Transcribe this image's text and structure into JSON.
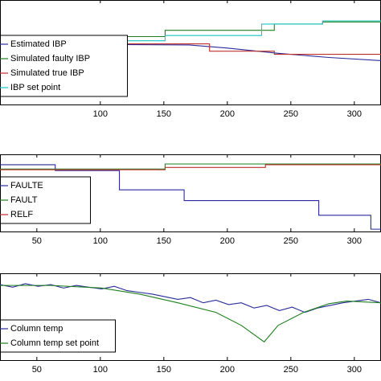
{
  "chart_data": [
    {
      "type": "line",
      "xlim": [
        21,
        321
      ],
      "xticks": [
        100,
        150,
        200,
        250,
        300
      ],
      "ylim": [
        0,
        1
      ],
      "legend": "lower left",
      "series": [
        {
          "name": "Estimated IBP",
          "color": "#2a2a9a",
          "x": [
            21,
            170,
            200,
            240,
            280,
            321
          ],
          "values": [
            0.58,
            0.57,
            0.54,
            0.49,
            0.45,
            0.42
          ]
        },
        {
          "name": "Simulated faulty IBP",
          "color": "#1e7f1e",
          "x": [
            21,
            66,
            66,
            104,
            104,
            151,
            151,
            237,
            237,
            275,
            275,
            321
          ],
          "values": [
            0.58,
            0.58,
            0.62,
            0.62,
            0.65,
            0.65,
            0.71,
            0.71,
            0.77,
            0.77,
            0.79,
            0.79
          ]
        },
        {
          "name": "Simulated true IBP",
          "color": "#c0302a",
          "x": [
            21,
            186,
            186,
            237,
            237,
            321
          ],
          "values": [
            0.58,
            0.58,
            0.51,
            0.51,
            0.48,
            0.48
          ]
        },
        {
          "name": "IBP set point",
          "color": "#19c4c4",
          "x": [
            21,
            104,
            104,
            151,
            151,
            227,
            227,
            275,
            275,
            321
          ],
          "values": [
            0.57,
            0.57,
            0.61,
            0.61,
            0.66,
            0.66,
            0.77,
            0.77,
            0.8,
            0.8
          ]
        }
      ]
    },
    {
      "type": "line",
      "xlim": [
        21,
        321
      ],
      "xticks": [
        50,
        100,
        150,
        200,
        250,
        300
      ],
      "ylim": [
        0,
        1
      ],
      "legend": "lower left",
      "series": [
        {
          "name": "FAULTE",
          "color": "#2a2a9a",
          "x": [
            21,
            64.5,
            64.5,
            115,
            115,
            166,
            166,
            272,
            272,
            313,
            313,
            321
          ],
          "values": [
            0.865,
            0.865,
            0.79,
            0.79,
            0.54,
            0.54,
            0.4,
            0.4,
            0.21,
            0.21,
            0.03,
            0.03
          ]
        },
        {
          "name": "FAULT",
          "color": "#1e7f1e",
          "x": [
            21,
            151,
            151,
            321
          ],
          "values": [
            0.81,
            0.81,
            0.875,
            0.875
          ]
        },
        {
          "name": "RELF",
          "color": "#c0302a",
          "x": [
            21,
            151,
            151,
            230,
            230,
            321
          ],
          "values": [
            0.8,
            0.8,
            0.83,
            0.83,
            0.865,
            0.865
          ]
        }
      ]
    },
    {
      "type": "line",
      "xlim": [
        21,
        321
      ],
      "xticks": [
        50,
        100,
        150,
        200,
        250,
        300
      ],
      "ylim": [
        0,
        1
      ],
      "legend": "lower left",
      "series": [
        {
          "name": "Column temp",
          "color": "#2a2a9a",
          "x": [
            21,
            31,
            41,
            51,
            61,
            71,
            81,
            91,
            101,
            111,
            121,
            131,
            141,
            151,
            161,
            171,
            181,
            191,
            201,
            211,
            221,
            231,
            241,
            251,
            261,
            271,
            281,
            291,
            301,
            311,
            321
          ],
          "values": [
            0.87,
            0.84,
            0.88,
            0.85,
            0.87,
            0.83,
            0.86,
            0.84,
            0.82,
            0.85,
            0.8,
            0.78,
            0.76,
            0.73,
            0.7,
            0.72,
            0.66,
            0.69,
            0.64,
            0.66,
            0.6,
            0.63,
            0.57,
            0.61,
            0.55,
            0.6,
            0.63,
            0.66,
            0.68,
            0.7,
            0.66
          ]
        },
        {
          "name": "Column temp set point",
          "color": "#1e7f1e",
          "x": [
            21,
            61,
            101,
            131,
            161,
            191,
            211,
            229,
            240,
            260,
            280,
            294,
            321
          ],
          "values": [
            0.86,
            0.86,
            0.83,
            0.76,
            0.66,
            0.55,
            0.4,
            0.21,
            0.4,
            0.55,
            0.65,
            0.68,
            0.66
          ]
        }
      ]
    }
  ]
}
